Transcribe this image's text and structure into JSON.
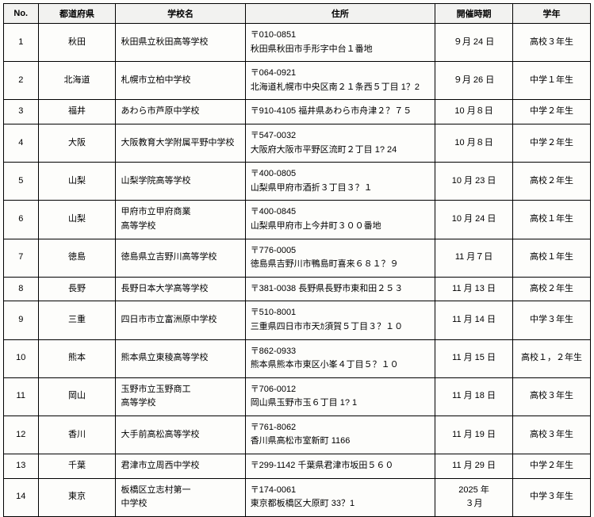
{
  "headers": {
    "no": "No.",
    "pref": "都道府県",
    "school": "学校名",
    "addr": "住所",
    "date": "開催時期",
    "grade": "学年"
  },
  "rows": [
    {
      "no": "1",
      "pref": "秋田",
      "school": "秋田県立秋田高等学校",
      "addr": "〒010-0851\n秋田県秋田市手形字中台１番地",
      "date": "９月 24 日",
      "grade": "高校３年生"
    },
    {
      "no": "2",
      "pref": "北海道",
      "school": "札幌市立柏中学校",
      "addr": "〒064-0921\n北海道札幌市中央区南２１条西５丁目 1？2",
      "date": "９月 26 日",
      "grade": "中学１年生"
    },
    {
      "no": "3",
      "pref": "福井",
      "school": "あわら市芦原中学校",
      "addr": "〒910-4105 福井県あわら市舟津２？７５",
      "date": "10 月８日",
      "grade": "中学２年生"
    },
    {
      "no": "4",
      "pref": "大阪",
      "school": "大阪教育大学附属平野中学校",
      "addr": "〒547-0032\n大阪府大阪市平野区流町２丁目 1? 24",
      "date": "10 月８日",
      "grade": "中学２年生"
    },
    {
      "no": "5",
      "pref": "山梨",
      "school": "山梨学院高等学校",
      "addr": "〒400-0805\n山梨県甲府市酒折３丁目３？１",
      "date": "10 月 23 日",
      "grade": "高校２年生"
    },
    {
      "no": "6",
      "pref": "山梨",
      "school": "甲府市立甲府商業\n高等学校",
      "addr": "〒400-0845\n山梨県甲府市上今井町３００番地",
      "date": "10 月 24 日",
      "grade": "高校１年生"
    },
    {
      "no": "7",
      "pref": "徳島",
      "school": "徳島県立吉野川高等学校",
      "addr": "〒776-0005\n徳島県吉野川市鴨島町喜来６８１？９",
      "date": "11 月７日",
      "grade": "高校１年生"
    },
    {
      "no": "8",
      "pref": "長野",
      "school": "長野日本大学高等学校",
      "addr": "〒381-0038 長野県長野市東和田２５３",
      "date": "11 月 13 日",
      "grade": "高校２年生"
    },
    {
      "no": "9",
      "pref": "三重",
      "school": "四日市市立富洲原中学校",
      "addr": "〒510-8001\n三重県四日市市天ｶ須賀５丁目３？１０",
      "date": "11 月 14 日",
      "grade": "中学３年生"
    },
    {
      "no": "10",
      "pref": "熊本",
      "school": "熊本県立東稜高等学校",
      "addr": "〒862-0933\n熊本県熊本市東区小峯４丁目５？１０",
      "date": "11 月 15 日",
      "grade": "高校１，２年生"
    },
    {
      "no": "11",
      "pref": "岡山",
      "school": "玉野市立玉野商工\n高等学校",
      "addr": "〒706-0012\n岡山県玉野市玉６丁目 1? 1",
      "date": "11 月 18 日",
      "grade": "高校３年生"
    },
    {
      "no": "12",
      "pref": "香川",
      "school": "大手前高松高等学校",
      "addr": "〒761-8062\n香川県高松市室新町 1166",
      "date": "11 月 19 日",
      "grade": "高校３年生"
    },
    {
      "no": "13",
      "pref": "千葉",
      "school": "君津市立周西中学校",
      "addr": "〒299-1142 千葉県君津市坂田５６０",
      "date": "11 月 29 日",
      "grade": "中学２年生"
    },
    {
      "no": "14",
      "pref": "東京",
      "school": "板橋区立志村第一\n中学校",
      "addr": "〒174-0061\n東京都板橋区大原町 33？1",
      "date": "2025 年\n３月",
      "grade": "中学３年生"
    }
  ]
}
